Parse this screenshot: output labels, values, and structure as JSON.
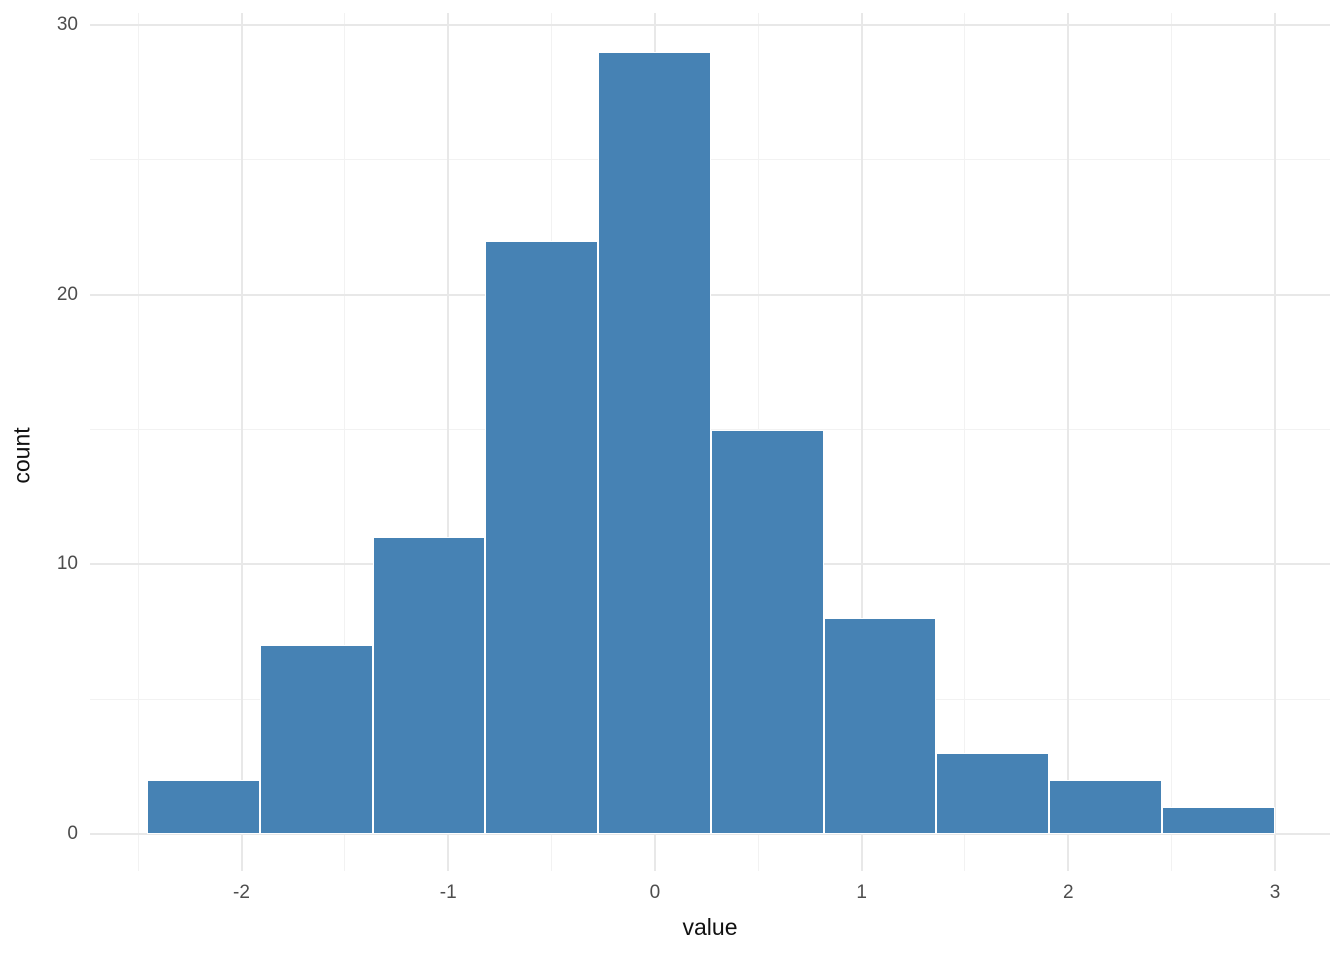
{
  "chart_data": {
    "type": "bar",
    "subtype": "histogram",
    "title": "",
    "xlabel": "value",
    "ylabel": "count",
    "bin_edges": [
      -2.458,
      -1.912,
      -1.366,
      -0.821,
      -0.275,
      0.271,
      0.816,
      1.362,
      1.908,
      2.454,
      3.0
    ],
    "bin_centers": [
      -2.19,
      -1.64,
      -1.09,
      -0.55,
      0.0,
      0.55,
      1.09,
      1.64,
      2.18,
      2.73
    ],
    "counts": [
      2,
      7,
      11,
      22,
      29,
      15,
      8,
      3,
      2,
      1
    ],
    "x_major_ticks": [
      -2,
      -1,
      0,
      1,
      2,
      3
    ],
    "x_major_tick_labels": [
      "-2",
      "-1",
      "0",
      "1",
      "2",
      "3"
    ],
    "x_minor_ticks": [
      -2.5,
      -1.5,
      -0.5,
      0.5,
      1.5,
      2.5
    ],
    "y_major_ticks": [
      0,
      10,
      20,
      30
    ],
    "y_major_tick_labels": [
      "0",
      "10",
      "20",
      "30"
    ],
    "y_minor_ticks": [
      5,
      15,
      25
    ],
    "xlim": [
      -2.733,
      3.266
    ],
    "ylim": [
      -1.37,
      30.45
    ],
    "grid": "on",
    "legend": "none",
    "colors": {
      "bar_fill": "#4682B4",
      "bar_border": "#FFFFFF",
      "grid_major": "#E8E8E8",
      "grid_minor": "#F2F2F2",
      "tick_label": "#4D4D4D",
      "axis_title": "#111111",
      "background": "#FFFFFF"
    }
  }
}
